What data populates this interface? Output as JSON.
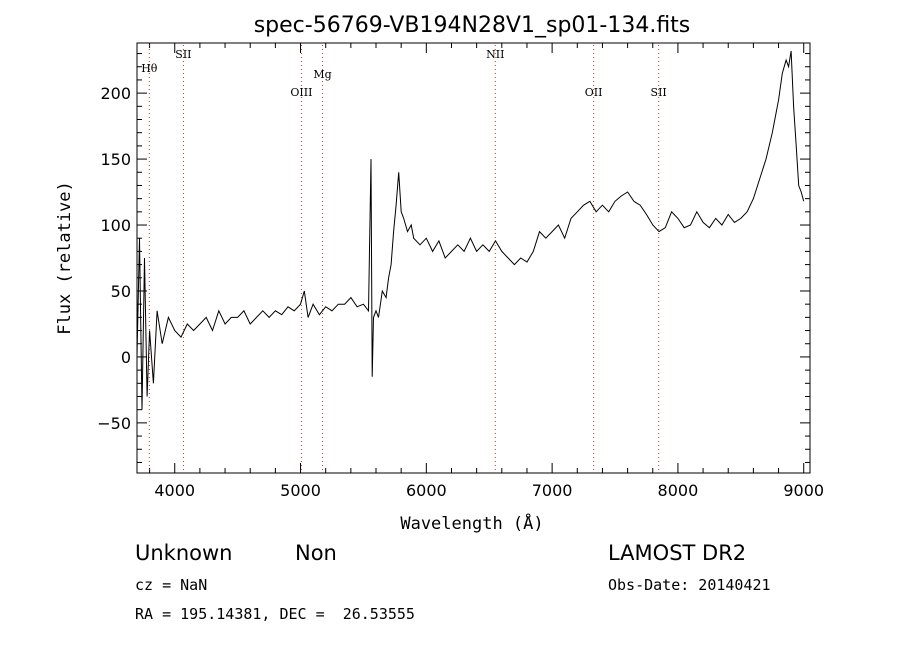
{
  "chart_data": {
    "type": "line",
    "title": "spec-56769-VB194N28V1_sp01-134.fits",
    "xlabel": "Wavelength (Å)",
    "ylabel": "Flux (relative)",
    "xlim": [
      3700,
      9050
    ],
    "ylim": [
      -88,
      238
    ],
    "x_ticks": [
      4000,
      5000,
      6000,
      7000,
      8000,
      9000
    ],
    "y_ticks": [
      -50,
      0,
      50,
      100,
      150,
      200
    ],
    "grid": false,
    "line_color": "#000000",
    "marker_color": "#d03030",
    "spectral_lines": [
      {
        "name": "Hθ",
        "wavelength": 3798
      },
      {
        "name": "SII",
        "wavelength": 4069
      },
      {
        "name": "OIII",
        "wavelength": 5007
      },
      {
        "name": "Mg",
        "wavelength": 5175
      },
      {
        "name": "NII",
        "wavelength": 6548
      },
      {
        "name": "OII",
        "wavelength": 7330
      },
      {
        "name": "SII",
        "wavelength": 7847
      }
    ],
    "series": [
      {
        "x": [
          3700,
          3720,
          3740,
          3760,
          3780,
          3800,
          3830,
          3860,
          3900,
          3950,
          4000,
          4050,
          4100,
          4150,
          4200,
          4250,
          4300,
          4350,
          4400,
          4450,
          4500,
          4550,
          4600,
          4650,
          4700,
          4750,
          4800,
          4850,
          4900,
          4950,
          5000,
          5030,
          5060,
          5100,
          5150,
          5200,
          5250,
          5300,
          5350,
          5400,
          5450,
          5500,
          5540,
          5560,
          5570,
          5580,
          5600,
          5620,
          5650,
          5680,
          5700,
          5720,
          5740,
          5760,
          5780,
          5800,
          5820,
          5850,
          5880,
          5900,
          5950,
          6000,
          6050,
          6100,
          6150,
          6200,
          6250,
          6300,
          6350,
          6400,
          6450,
          6500,
          6550,
          6600,
          6650,
          6700,
          6750,
          6800,
          6850,
          6900,
          6950,
          7000,
          7050,
          7100,
          7150,
          7200,
          7250,
          7300,
          7350,
          7400,
          7450,
          7500,
          7550,
          7600,
          7650,
          7700,
          7750,
          7800,
          7850,
          7900,
          7950,
          8000,
          8050,
          8100,
          8150,
          8200,
          8250,
          8300,
          8350,
          8400,
          8450,
          8500,
          8550,
          8600,
          8650,
          8700,
          8750,
          8800,
          8830,
          8860,
          8880,
          8900,
          8920,
          8940,
          8960,
          8980,
          9000
        ],
        "y": [
          0,
          90,
          -40,
          75,
          -30,
          20,
          -20,
          35,
          10,
          30,
          20,
          15,
          25,
          20,
          25,
          30,
          20,
          35,
          25,
          30,
          30,
          35,
          25,
          30,
          35,
          30,
          35,
          32,
          38,
          35,
          40,
          50,
          30,
          40,
          32,
          38,
          35,
          40,
          40,
          45,
          38,
          40,
          35,
          150,
          -15,
          30,
          35,
          30,
          50,
          45,
          60,
          70,
          95,
          115,
          140,
          110,
          105,
          95,
          100,
          90,
          85,
          90,
          80,
          88,
          75,
          80,
          85,
          80,
          90,
          80,
          85,
          80,
          88,
          80,
          75,
          70,
          75,
          72,
          80,
          95,
          90,
          95,
          100,
          90,
          105,
          110,
          115,
          118,
          110,
          115,
          110,
          118,
          122,
          125,
          118,
          115,
          108,
          100,
          95,
          98,
          110,
          105,
          98,
          100,
          110,
          102,
          98,
          105,
          100,
          108,
          102,
          105,
          110,
          120,
          135,
          150,
          170,
          195,
          215,
          225,
          220,
          232,
          190,
          160,
          130,
          125,
          118
        ]
      }
    ]
  },
  "info": {
    "class": "Unknown",
    "subclass": "Non",
    "survey": "LAMOST DR2",
    "cz": "cz = NaN",
    "obs_date": "Obs-Date: 20140421",
    "coords": "RA = 195.14381, DEC =  26.53555"
  }
}
